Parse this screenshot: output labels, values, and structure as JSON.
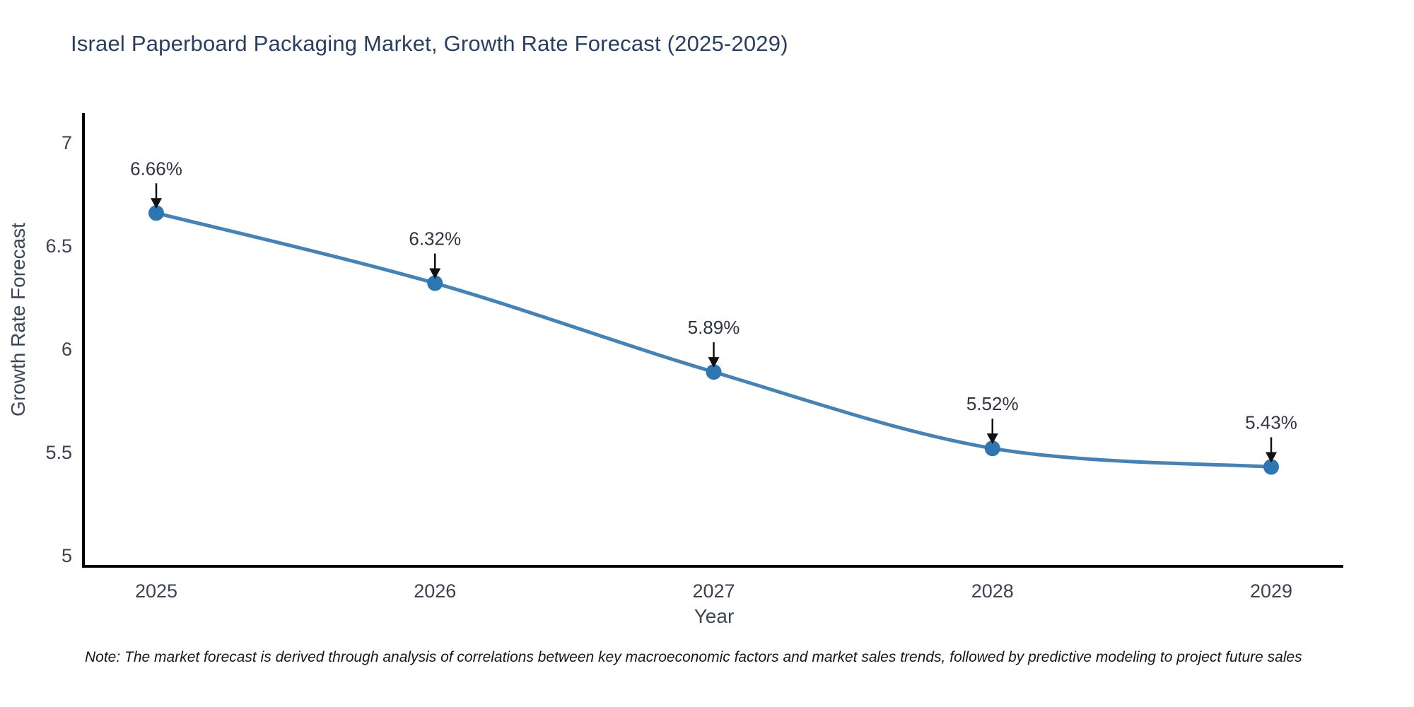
{
  "page": {
    "background": "#ffffff"
  },
  "chart_data": {
    "type": "line",
    "title": "Israel Paperboard Packaging Market, Growth Rate Forecast (2025-2029)",
    "xlabel": "Year",
    "ylabel": "Growth Rate Forecast",
    "x": [
      2025,
      2026,
      2027,
      2028,
      2029
    ],
    "x_tick_labels": [
      "2025",
      "2026",
      "2027",
      "2028",
      "2029"
    ],
    "values": [
      6.66,
      6.32,
      5.89,
      5.52,
      5.43
    ],
    "point_labels": [
      "6.66%",
      "6.32%",
      "5.89%",
      "5.52%",
      "5.43%"
    ],
    "y_ticks": [
      5,
      5.5,
      6,
      6.5,
      7
    ],
    "y_tick_labels": [
      "5",
      "5.5",
      "6",
      "6.5",
      "7"
    ],
    "ylim": [
      4.95,
      7.19
    ],
    "grid": false,
    "legend": "none",
    "smooth": true,
    "colors": {
      "line": "#4682b4",
      "marker": "#2e76b2",
      "axis": "#000000",
      "tick_text": "#3b4351",
      "annotation_text": "#2f3542",
      "annotation_arrow": "#111111",
      "title_text": "#2a3f5f"
    }
  },
  "note": {
    "text": "Note: The market forecast is derived through analysis of correlations between key macroeconomic factors and market sales trends, followed by predictive modeling to project future sales"
  }
}
